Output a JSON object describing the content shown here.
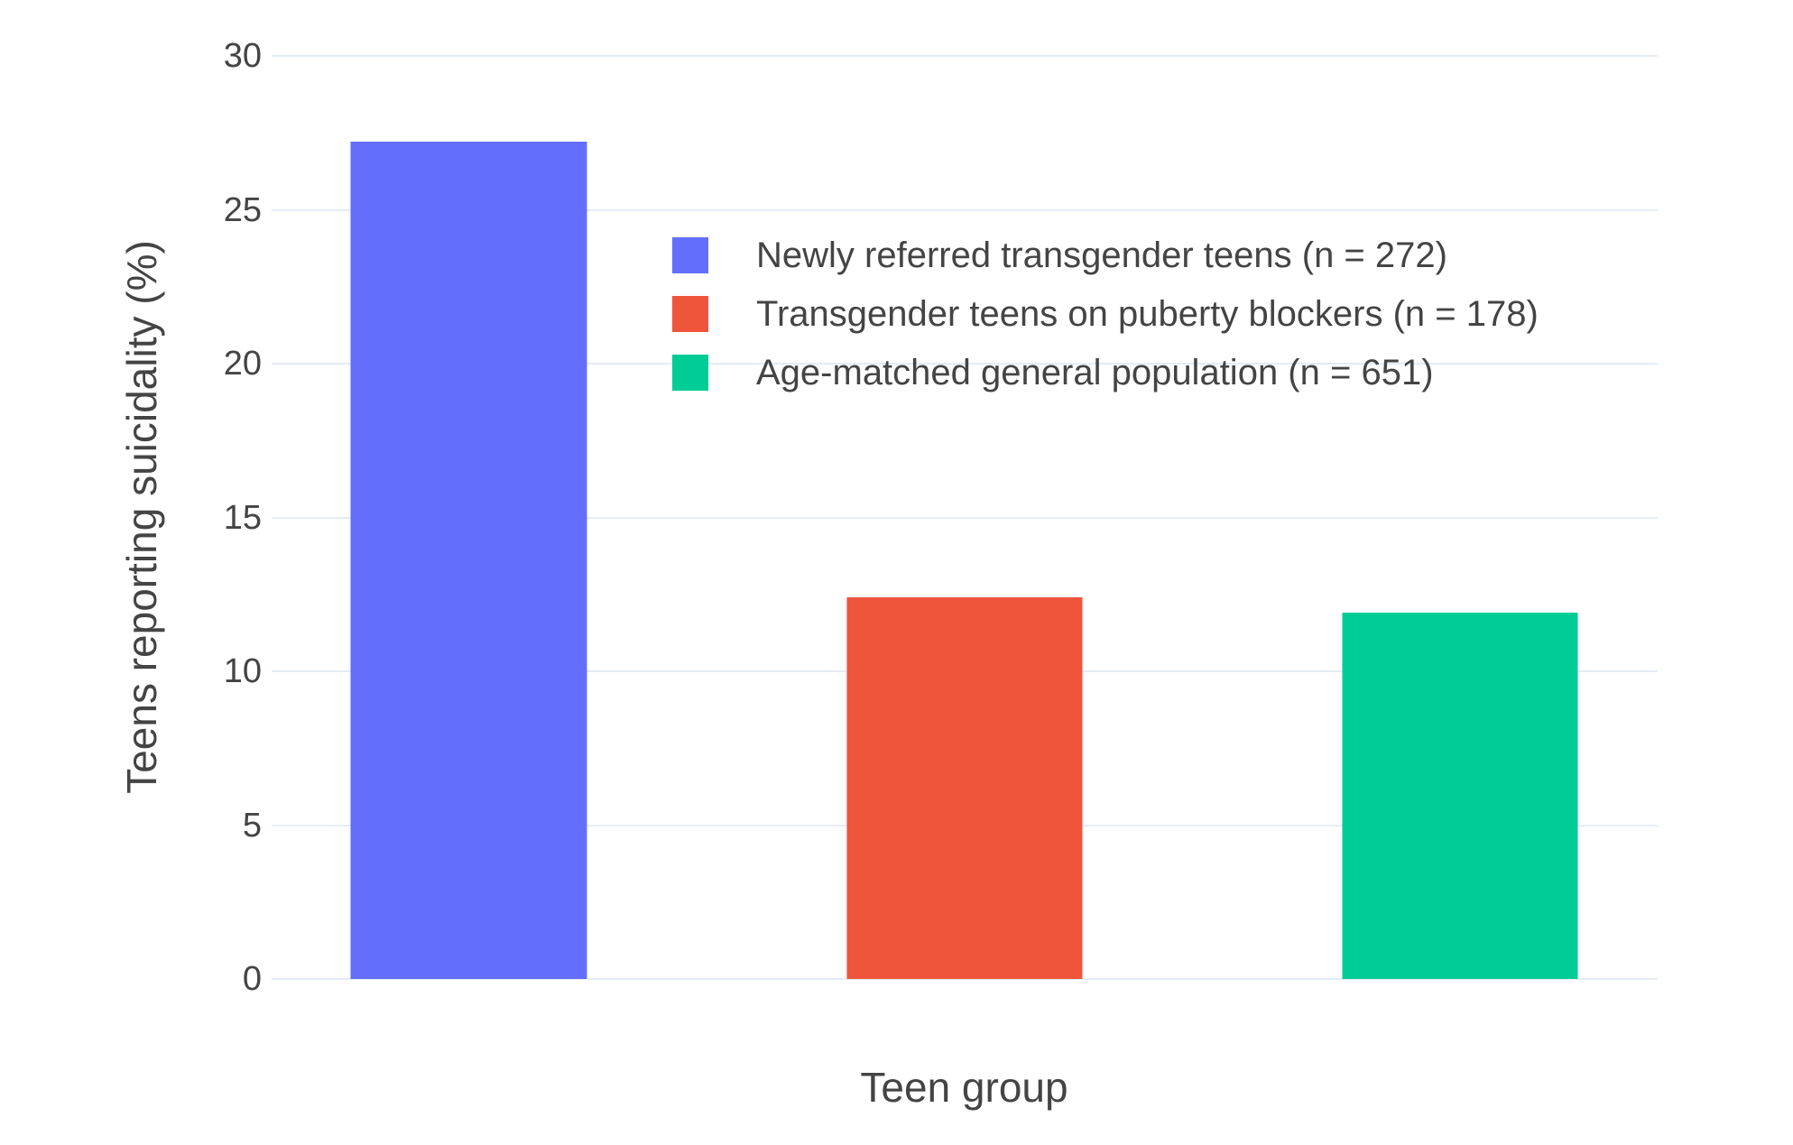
{
  "chart_data": {
    "type": "bar",
    "title": "",
    "xlabel": "Teen group",
    "ylabel": "Teens reporting suicidality (%)",
    "ylim": [
      0,
      30
    ],
    "yticks": [
      0,
      5,
      10,
      15,
      20,
      25,
      30
    ],
    "grid": true,
    "x_tick_labels": [],
    "legend_position": "inside top, left of center",
    "categories": [
      "Newly referred transgender teens (n = 272)",
      "Transgender teens on puberty blockers (n = 178)",
      "Age-matched general population (n = 651)"
    ],
    "bars": [
      {
        "label": "Newly referred transgender teens (n = 272)",
        "value": 27.2,
        "color": "#636EFA"
      },
      {
        "label": "Transgender teens on puberty blockers (n = 178)",
        "value": 12.4,
        "color": "#EF553B"
      },
      {
        "label": "Age-matched general population (n = 651)",
        "value": 11.9,
        "color": "#00CC96"
      }
    ]
  },
  "style": {
    "background": "#FFFFFF",
    "grid_color": "#E5ECF6",
    "text_color": "#444444"
  }
}
